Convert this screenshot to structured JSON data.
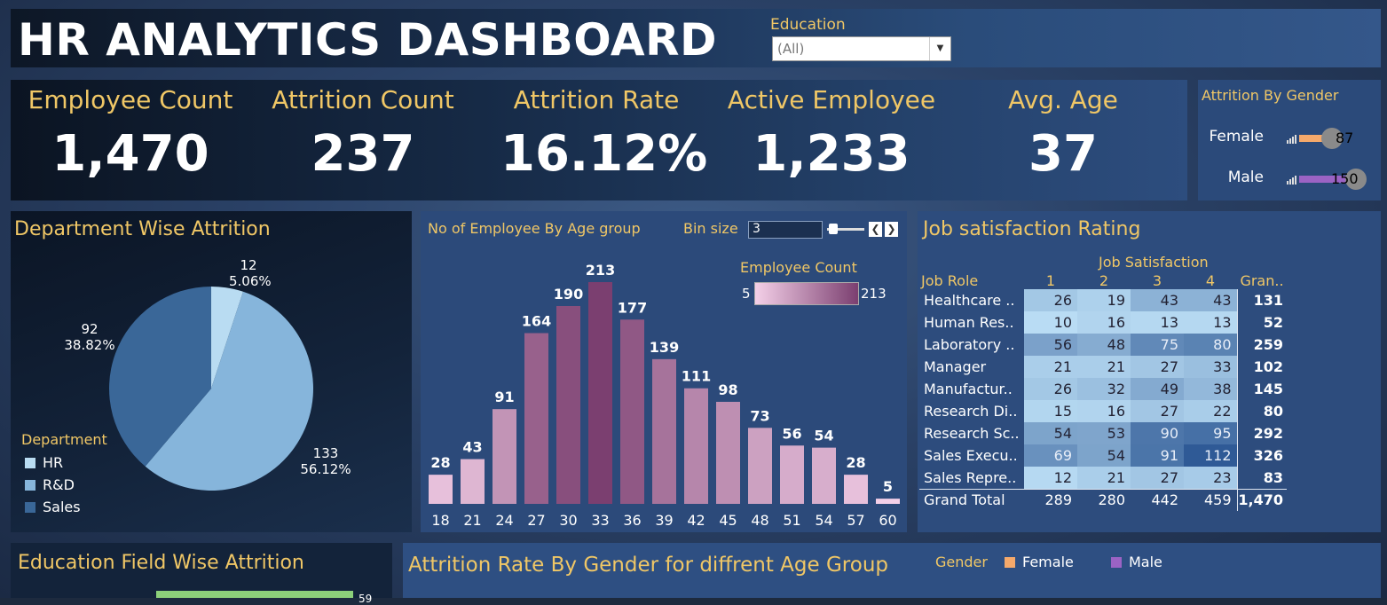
{
  "title": "HR ANALYTICS DASHBOARD",
  "filter": {
    "label": "Education",
    "value": "(All)"
  },
  "kpis": [
    {
      "label": "Employee Count",
      "value": "1,470"
    },
    {
      "label": "Attrition Count",
      "value": "237"
    },
    {
      "label": "Attrition Rate",
      "value": "16.12%"
    },
    {
      "label": "Active Employee",
      "value": "1,233"
    },
    {
      "label": "Avg. Age",
      "value": "37"
    }
  ],
  "attrition_by_gender": {
    "title": "Attrition By Gender",
    "rows": [
      {
        "label": "Female",
        "value": "87",
        "color": "#f5a96b"
      },
      {
        "label": "Male",
        "value": "150",
        "color": "#9b63c4"
      }
    ]
  },
  "department": {
    "title": "Department Wise Attrition",
    "legend_title": "Department",
    "slices": [
      {
        "name": "HR",
        "count": "12",
        "pct": "5.06%",
        "color": "#b9dcf2"
      },
      {
        "name": "R&D",
        "count": "133",
        "pct": "56.12%",
        "color": "#86b5db"
      },
      {
        "name": "Sales",
        "count": "92",
        "pct": "38.82%",
        "color": "#3a6798"
      }
    ]
  },
  "age_group": {
    "title": "No of Employee By Age group",
    "bin_label": "Bin size",
    "bin_value": "3",
    "legend_title": "Employee Count",
    "legend_min": "5",
    "legend_max": "213"
  },
  "chart_data": {
    "type": "bar",
    "title": "No of Employee By Age group",
    "categories": [
      "18",
      "21",
      "24",
      "27",
      "30",
      "33",
      "36",
      "39",
      "42",
      "45",
      "48",
      "51",
      "54",
      "57",
      "60"
    ],
    "values": [
      28,
      43,
      91,
      164,
      190,
      213,
      177,
      139,
      111,
      98,
      73,
      56,
      54,
      28,
      5
    ],
    "color_scale": [
      "#f4d0e8",
      "#7b3f70"
    ]
  },
  "job_satisfaction": {
    "title": "Job satisfaction Rating",
    "header": "Job Satisfaction",
    "columns": [
      "Job Role",
      "1",
      "2",
      "3",
      "4",
      "Gran.."
    ],
    "rows": [
      {
        "role": "Healthcare ..",
        "v": [
          "26",
          "19",
          "43",
          "43"
        ],
        "total": "131"
      },
      {
        "role": "Human Res..",
        "v": [
          "10",
          "16",
          "13",
          "13"
        ],
        "total": "52"
      },
      {
        "role": "Laboratory ..",
        "v": [
          "56",
          "48",
          "75",
          "80"
        ],
        "total": "259"
      },
      {
        "role": "Manager",
        "v": [
          "21",
          "21",
          "27",
          "33"
        ],
        "total": "102"
      },
      {
        "role": "Manufactur..",
        "v": [
          "26",
          "32",
          "49",
          "38"
        ],
        "total": "145"
      },
      {
        "role": "Research Di..",
        "v": [
          "15",
          "16",
          "27",
          "22"
        ],
        "total": "80"
      },
      {
        "role": "Research Sc..",
        "v": [
          "54",
          "53",
          "90",
          "95"
        ],
        "total": "292"
      },
      {
        "role": "Sales Execu..",
        "v": [
          "69",
          "54",
          "91",
          "112"
        ],
        "total": "326"
      },
      {
        "role": "Sales Repre..",
        "v": [
          "12",
          "21",
          "27",
          "23"
        ],
        "total": "83"
      }
    ],
    "grand_total": {
      "role": "Grand Total",
      "v": [
        "289",
        "280",
        "442",
        "459"
      ],
      "total": "1,470"
    }
  },
  "education_field": {
    "title": "Education Field Wise Attrition",
    "first_value": "59"
  },
  "rate_by_gender": {
    "title": "Attrition Rate By Gender for diffrent Age Group",
    "legend_title": "Gender",
    "legend": [
      {
        "name": "Female",
        "color": "#f5a96b"
      },
      {
        "name": "Male",
        "color": "#9b63c4"
      }
    ]
  }
}
